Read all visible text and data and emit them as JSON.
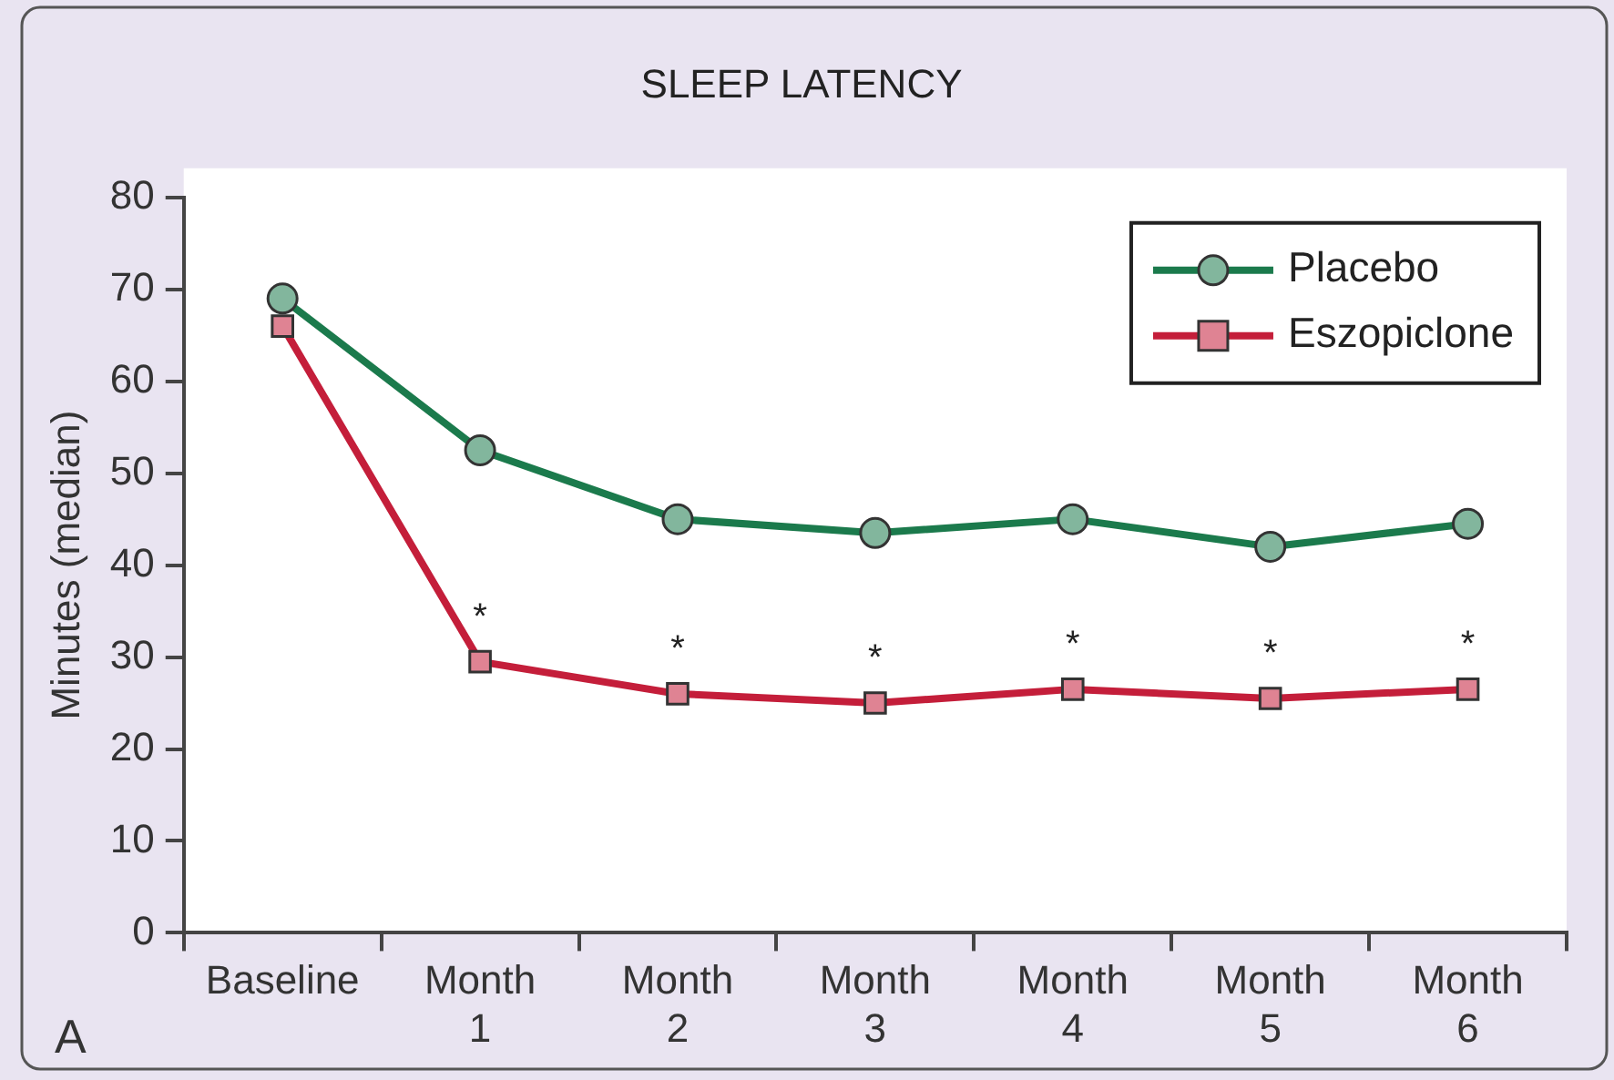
{
  "chart_data": {
    "type": "line",
    "title": "SLEEP LATENCY",
    "ylabel": "Minutes (median)",
    "categories": [
      "Baseline",
      "Month 1",
      "Month 2",
      "Month 3",
      "Month 4",
      "Month 5",
      "Month 6"
    ],
    "series": [
      {
        "name": "Placebo",
        "color": "#1b7a4c",
        "marker": "circle",
        "values": [
          69,
          52.5,
          45,
          43.5,
          45,
          42,
          44.5
        ]
      },
      {
        "name": "Eszopiclone",
        "color": "#c41e3a",
        "marker": "square",
        "values": [
          66,
          29.5,
          26,
          25,
          26.5,
          25.5,
          26.5
        ]
      }
    ],
    "ylim": [
      0,
      80
    ],
    "yticks": [
      0,
      10,
      20,
      30,
      40,
      50,
      60,
      70,
      80
    ],
    "grid": false,
    "legend": "top right",
    "line_style": "solid",
    "annotations": [
      "A",
      {
        "text": "*",
        "x": "Month 1",
        "y": 29.5
      },
      {
        "text": "*",
        "x": "Month 2",
        "y": 26
      },
      {
        "text": "*",
        "x": "Month 3",
        "y": 25
      },
      {
        "text": "*",
        "x": "Month 4",
        "y": 26.5
      },
      {
        "text": "*",
        "x": "Month 5",
        "y": 25.5
      },
      {
        "text": "*",
        "x": "Month 6",
        "y": 26.5
      }
    ]
  }
}
